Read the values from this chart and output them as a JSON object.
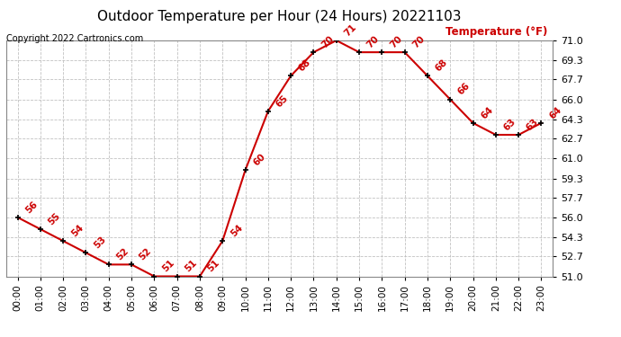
{
  "title": "Outdoor Temperature per Hour (24 Hours) 20221103",
  "copyright": "Copyright 2022 Cartronics.com",
  "legend_label": "Temperature (°F)",
  "hours": [
    "00:00",
    "01:00",
    "02:00",
    "03:00",
    "04:00",
    "05:00",
    "06:00",
    "07:00",
    "08:00",
    "09:00",
    "10:00",
    "11:00",
    "12:00",
    "13:00",
    "14:00",
    "15:00",
    "16:00",
    "17:00",
    "18:00",
    "19:00",
    "20:00",
    "21:00",
    "22:00",
    "23:00"
  ],
  "temps": [
    56,
    55,
    54,
    53,
    52,
    52,
    51,
    51,
    51,
    54,
    60,
    65,
    68,
    70,
    71,
    70,
    70,
    70,
    68,
    66,
    64,
    63,
    63,
    64
  ],
  "ylim": [
    51.0,
    71.0
  ],
  "yticks": [
    51.0,
    52.7,
    54.3,
    56.0,
    57.7,
    59.3,
    61.0,
    62.7,
    64.3,
    66.0,
    67.7,
    69.3,
    71.0
  ],
  "line_color": "#cc0000",
  "marker_color": "#000000",
  "label_color": "#cc0000",
  "title_color": "#000000",
  "copyright_color": "#000000",
  "legend_color": "#cc0000",
  "bg_color": "#ffffff",
  "grid_color": "#bbbbbb",
  "label_fontsize": 7.5,
  "title_fontsize": 11
}
